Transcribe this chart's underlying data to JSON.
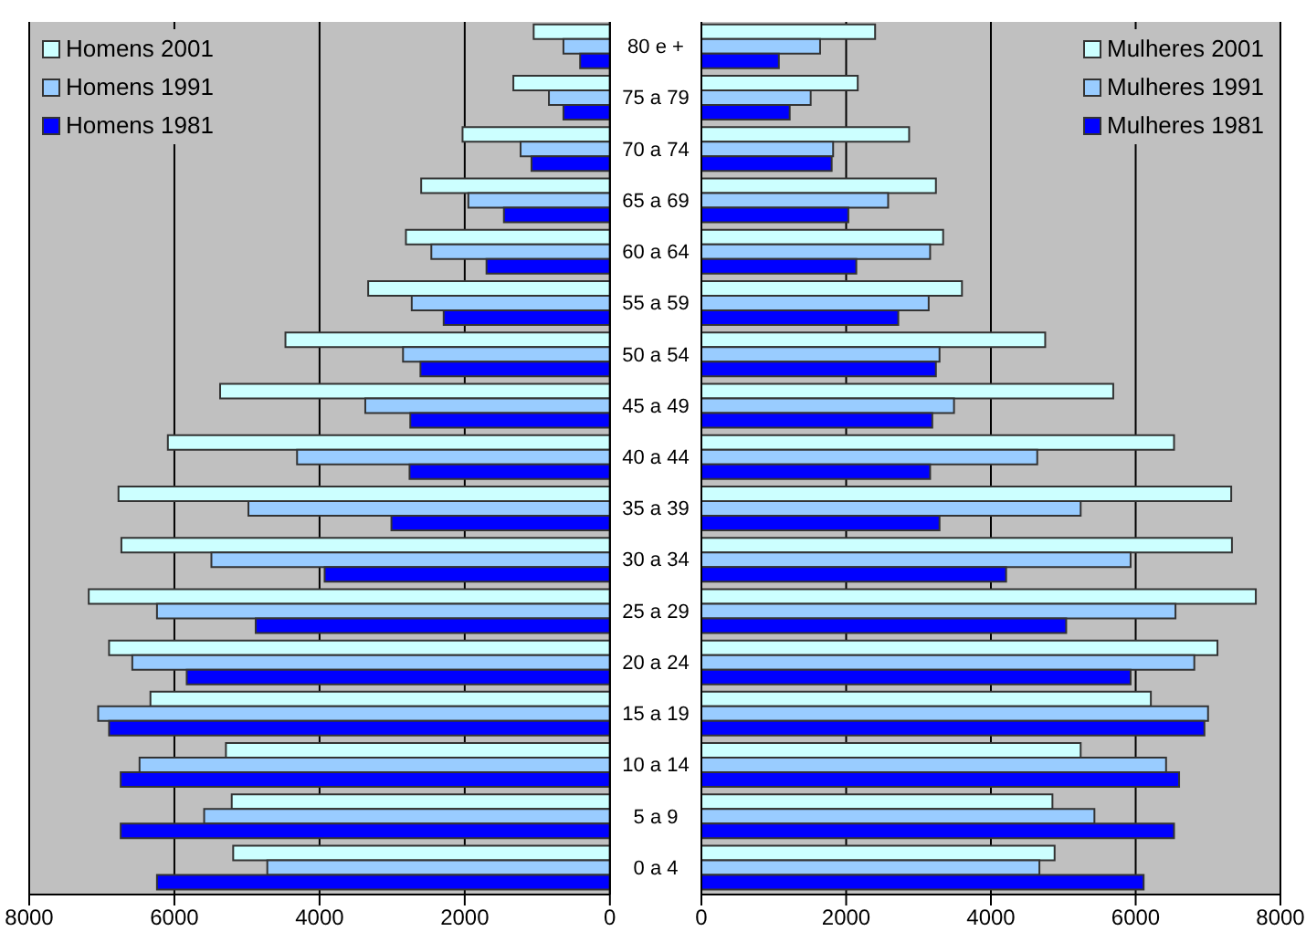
{
  "chart_data": [
    {
      "type": "bar",
      "orientation": "horizontal",
      "categories": [
        null,
        null,
        null,
        null,
        null,
        null,
        null,
        null,
        null,
        null,
        null,
        null,
        null,
        null,
        null,
        null,
        null
      ],
      "series": [
        {
          "name": "Homens 2001",
          "color": "#ccffff",
          "values": [
            1050,
            1330,
            2030,
            2600,
            2810,
            3330,
            4470,
            5370,
            6090,
            6770,
            6730,
            7180,
            6900,
            6330,
            5290,
            5210,
            5190
          ]
        },
        {
          "name": "Homens 1991",
          "color": "#99ccff",
          "values": [
            640,
            840,
            1230,
            1950,
            2460,
            2730,
            2850,
            3370,
            4310,
            4980,
            5490,
            6240,
            6580,
            7050,
            6480,
            5590,
            4720
          ]
        },
        {
          "name": "Homens 1981",
          "color": "#0000ff",
          "values": [
            410,
            640,
            1080,
            1460,
            1700,
            2290,
            2610,
            2750,
            2760,
            3010,
            3930,
            4880,
            5830,
            6900,
            6740,
            6740,
            6240
          ]
        }
      ],
      "xlim": [
        8000,
        0
      ],
      "xticks": [
        8000,
        6000,
        4000,
        2000,
        0
      ],
      "grid": "x",
      "legend": "top left"
    },
    {
      "type": "bar",
      "orientation": "horizontal",
      "categories": [
        "80 e +",
        "75 a 79",
        "70 a 74",
        "65 a 69",
        "60 a 64",
        "55 a 59",
        "50 a 54",
        "45 a 49",
        "40 a 44",
        "35 a 39",
        "30 a 34",
        "25 a 29",
        "20 a 24",
        "15 a 19",
        "10 a 14",
        "5 a 9",
        "0 a 4"
      ],
      "series": [
        {
          "name": "Mulheres 2001",
          "color": "#ccffff",
          "values": [
            2400,
            2160,
            2870,
            3240,
            3340,
            3600,
            4750,
            5690,
            6530,
            7320,
            7330,
            7660,
            7130,
            6210,
            5240,
            4850,
            4880
          ]
        },
        {
          "name": "Mulheres 1991",
          "color": "#99ccff",
          "values": [
            1640,
            1510,
            1820,
            2580,
            3160,
            3140,
            3290,
            3490,
            4640,
            5240,
            5930,
            6550,
            6810,
            7000,
            6420,
            5430,
            4670
          ]
        },
        {
          "name": "Mulheres 1981",
          "color": "#0000ff",
          "values": [
            1070,
            1220,
            1800,
            2030,
            2140,
            2720,
            3240,
            3190,
            3160,
            3290,
            4210,
            5040,
            5930,
            6950,
            6600,
            6530,
            6110
          ]
        }
      ],
      "xlim": [
        0,
        8000
      ],
      "xticks": [
        0,
        2000,
        4000,
        6000,
        8000
      ],
      "grid": "x",
      "legend": "top right"
    }
  ]
}
